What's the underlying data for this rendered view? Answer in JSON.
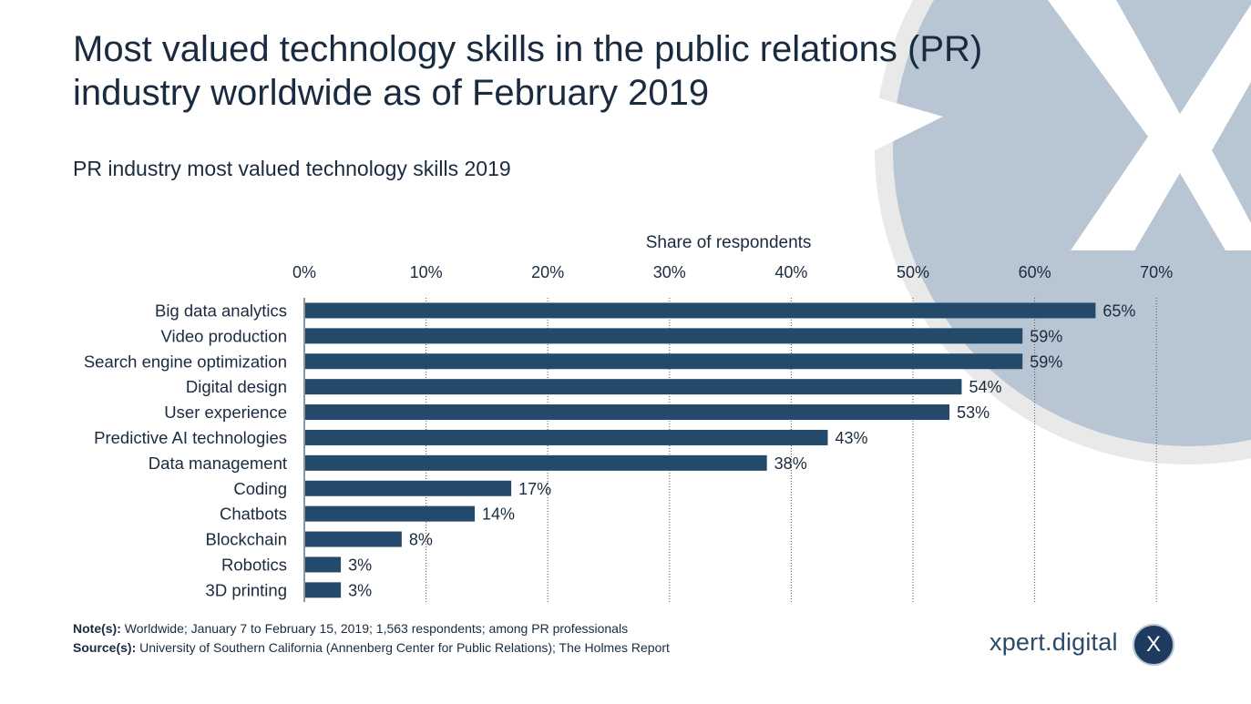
{
  "title_line1": "Most valued technology skills in the public relations (PR)",
  "title_line2": "industry worldwide as of February 2019",
  "subtitle": "PR industry most valued technology skills 2019",
  "chart_data": {
    "type": "bar",
    "orientation": "horizontal",
    "title": "",
    "xlabel": "Share of respondents",
    "ylabel": "",
    "xlim": [
      0,
      70
    ],
    "ticks": [
      "0%",
      "10%",
      "20%",
      "30%",
      "40%",
      "50%",
      "60%",
      "70%"
    ],
    "grid": true,
    "categories": [
      "Big data analytics",
      "Video production",
      "Search engine optimization",
      "Digital design",
      "User experience",
      "Predictive AI technologies",
      "Data management",
      "Coding",
      "Chatbots",
      "Blockchain",
      "Robotics",
      "3D printing"
    ],
    "values": [
      65,
      59,
      59,
      54,
      53,
      43,
      38,
      17,
      14,
      8,
      3,
      3
    ],
    "value_suffix": "%",
    "bar_color": "#234a6b"
  },
  "footer": {
    "note_label": "Note(s):",
    "note_text": " Worldwide; January 7 to February 15, 2019; 1,563 respondents; among PR professionals",
    "source_label": "Source(s):",
    "source_text": " University of Southern California (Annenberg Center for Public Relations); The Holmes Report"
  },
  "brand": {
    "name": "xpert.digital",
    "badge_letter": "X"
  },
  "colors": {
    "deco_circle": "#b8c6d4",
    "deco_ring": "#e8e8e8",
    "text": "#1a2b3f"
  }
}
